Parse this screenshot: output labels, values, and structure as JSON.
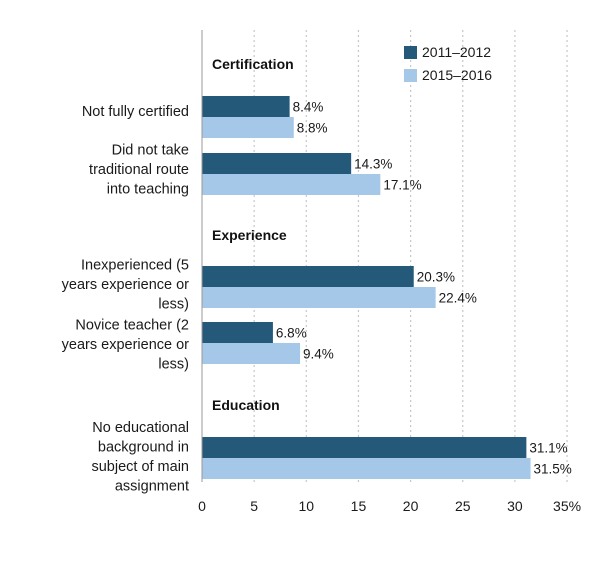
{
  "colors": {
    "series_2011": "#25597a",
    "series_2015": "#a6c8e8",
    "grid": "#c7c7c7",
    "axis": "#999999",
    "text": "#1a1a1a"
  },
  "chart_data": {
    "type": "bar",
    "orientation": "horizontal",
    "title": "",
    "xlabel": "",
    "ylabel": "",
    "xlim": [
      0,
      35
    ],
    "ticks": [
      0,
      5,
      10,
      15,
      20,
      25,
      30,
      35
    ],
    "tick_labels": [
      "0",
      "5",
      "10",
      "15",
      "20",
      "25",
      "30",
      "35%"
    ],
    "grid": true,
    "legend_position": "top-right",
    "groups": [
      "Certification",
      "Experience",
      "Education"
    ],
    "categories": [
      {
        "lines": [
          "Not fully certified"
        ],
        "group": "Certification"
      },
      {
        "lines": [
          "Did not take",
          "traditional route",
          "into teaching"
        ],
        "group": "Certification"
      },
      {
        "lines": [
          "Inexperienced (5",
          "years experience or",
          "less)"
        ],
        "group": "Experience"
      },
      {
        "lines": [
          "Novice teacher (2",
          "years experience or",
          "less)"
        ],
        "group": "Experience"
      },
      {
        "lines": [
          "No educational",
          "background in",
          "subject of main",
          "assignment"
        ],
        "group": "Education"
      }
    ],
    "series": [
      {
        "name": "2011–2012",
        "values": [
          8.4,
          14.3,
          20.3,
          6.8,
          31.1
        ],
        "labels": [
          "8.4%",
          "14.3%",
          "20.3%",
          "6.8%",
          "31.1%"
        ]
      },
      {
        "name": "2015–2016",
        "values": [
          8.8,
          17.1,
          22.4,
          9.4,
          31.5
        ],
        "labels": [
          "8.8%",
          "17.1%",
          "22.4%",
          "9.4%",
          "31.5%"
        ]
      }
    ]
  }
}
